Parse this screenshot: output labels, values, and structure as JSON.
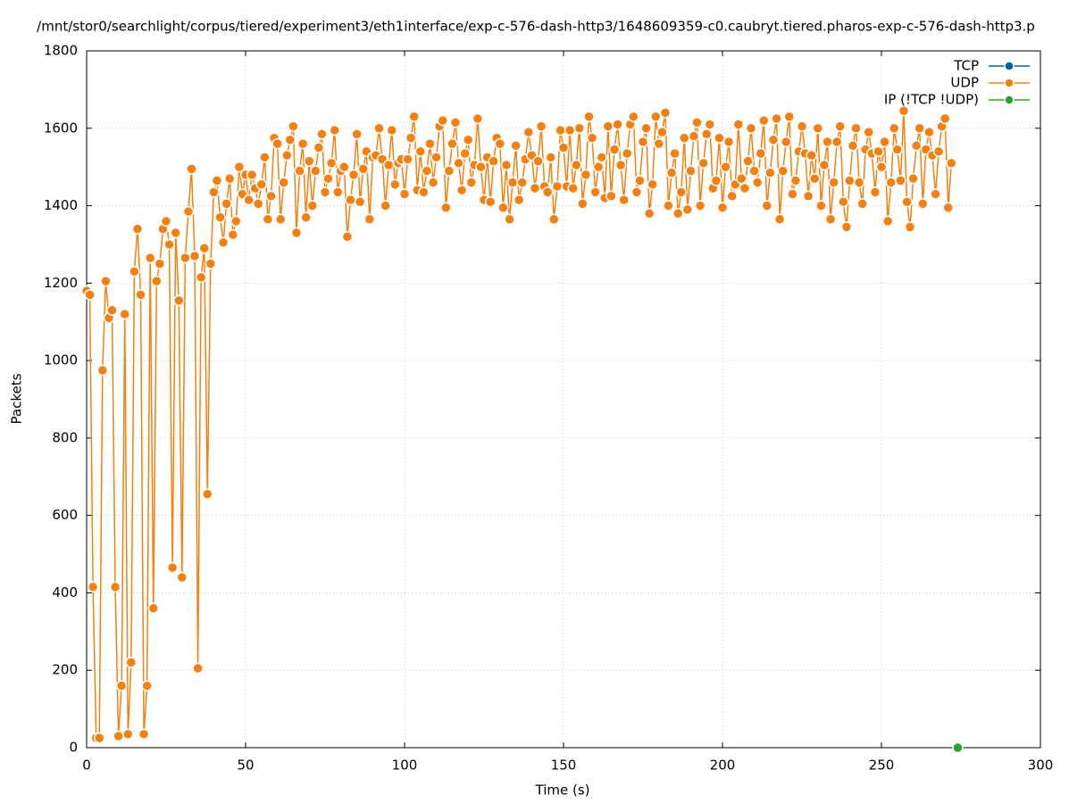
{
  "chart_data": {
    "type": "line",
    "title": "/mnt/stor0/searchlight/corpus/tiered/experiment3/eth1interface/exp-c-576-dash-http3/1648609359-c0.caubryt.tiered.pharos-exp-c-576-dash-http3.p",
    "x_label": "Time (s)",
    "y_label": "Packets",
    "xlim": [
      0,
      300
    ],
    "xticks": [
      0,
      50,
      100,
      150,
      200,
      250,
      300
    ],
    "ylim": [
      0,
      1800
    ],
    "yticks": [
      0,
      200,
      400,
      600,
      800,
      1000,
      1200,
      1400,
      1600,
      1800
    ],
    "grid": true,
    "legend": "top-right",
    "series": [
      {
        "name": "TCP",
        "color": "#0060ad",
        "x": [],
        "values": []
      },
      {
        "name": "UDP",
        "color": "#f5800f",
        "x": [
          0,
          1,
          2,
          3,
          4,
          5,
          6,
          7,
          8,
          9,
          10,
          11,
          12,
          13,
          14,
          15,
          16,
          17,
          18,
          19,
          20,
          21,
          22,
          23,
          24,
          25,
          26,
          27,
          28,
          29,
          30,
          31,
          32,
          33,
          34,
          35,
          36,
          37,
          38,
          39,
          40,
          41,
          42,
          43,
          44,
          45,
          46,
          47,
          48,
          49,
          50,
          51,
          52,
          53,
          54,
          55,
          56,
          57,
          58,
          59,
          60,
          61,
          62,
          63,
          64,
          65,
          66,
          67,
          68,
          69,
          70,
          71,
          72,
          73,
          74,
          75,
          76,
          77,
          78,
          79,
          80,
          81,
          82,
          83,
          84,
          85,
          86,
          87,
          88,
          89,
          90,
          91,
          92,
          93,
          94,
          95,
          96,
          97,
          98,
          99,
          100,
          101,
          102,
          103,
          104,
          105,
          106,
          107,
          108,
          109,
          110,
          111,
          112,
          113,
          114,
          115,
          116,
          117,
          118,
          119,
          120,
          121,
          122,
          123,
          124,
          125,
          126,
          127,
          128,
          129,
          130,
          131,
          132,
          133,
          134,
          135,
          136,
          137,
          138,
          139,
          140,
          141,
          142,
          143,
          144,
          145,
          146,
          147,
          148,
          149,
          150,
          151,
          152,
          153,
          154,
          155,
          156,
          157,
          158,
          159,
          160,
          161,
          162,
          163,
          164,
          165,
          166,
          167,
          168,
          169,
          170,
          171,
          172,
          173,
          174,
          175,
          176,
          177,
          178,
          179,
          180,
          181,
          182,
          183,
          184,
          185,
          186,
          187,
          188,
          189,
          190,
          191,
          192,
          193,
          194,
          195,
          196,
          197,
          198,
          199,
          200,
          201,
          202,
          203,
          204,
          205,
          206,
          207,
          208,
          209,
          210,
          211,
          212,
          213,
          214,
          215,
          216,
          217,
          218,
          219,
          220,
          221,
          222,
          223,
          224,
          225,
          226,
          227,
          228,
          229,
          230,
          231,
          232,
          233,
          234,
          235,
          236,
          237,
          238,
          239,
          240,
          241,
          242,
          243,
          244,
          245,
          246,
          247,
          248,
          249,
          250,
          251,
          252,
          253,
          254,
          255,
          256,
          257,
          258,
          259,
          260,
          261,
          262,
          263,
          264,
          265,
          266,
          267,
          268,
          269,
          270,
          271,
          272
        ],
        "values": [
          1180,
          1170,
          415,
          25,
          25,
          975,
          1205,
          1110,
          1130,
          415,
          30,
          160,
          1120,
          35,
          220,
          1230,
          1340,
          1170,
          35,
          160,
          1265,
          360,
          1205,
          1250,
          1340,
          1360,
          1300,
          465,
          1330,
          1155,
          440,
          1265,
          1385,
          1495,
          1270,
          205,
          1215,
          1290,
          655,
          1250,
          1435,
          1465,
          1370,
          1305,
          1405,
          1470,
          1325,
          1360,
          1500,
          1430,
          1480,
          1415,
          1480,
          1445,
          1405,
          1455,
          1525,
          1365,
          1425,
          1575,
          1560,
          1365,
          1460,
          1530,
          1570,
          1605,
          1330,
          1490,
          1560,
          1370,
          1515,
          1400,
          1490,
          1550,
          1585,
          1435,
          1470,
          1510,
          1595,
          1435,
          1490,
          1500,
          1320,
          1415,
          1480,
          1585,
          1410,
          1495,
          1540,
          1365,
          1525,
          1530,
          1600,
          1520,
          1400,
          1505,
          1595,
          1455,
          1510,
          1520,
          1430,
          1520,
          1575,
          1630,
          1440,
          1540,
          1435,
          1490,
          1560,
          1460,
          1525,
          1605,
          1620,
          1395,
          1490,
          1560,
          1615,
          1510,
          1440,
          1535,
          1570,
          1460,
          1505,
          1625,
          1500,
          1415,
          1525,
          1410,
          1515,
          1575,
          1560,
          1395,
          1505,
          1365,
          1460,
          1555,
          1415,
          1460,
          1520,
          1590,
          1530,
          1445,
          1515,
          1605,
          1450,
          1435,
          1525,
          1365,
          1450,
          1595,
          1550,
          1450,
          1595,
          1445,
          1505,
          1600,
          1405,
          1480,
          1630,
          1575,
          1435,
          1500,
          1525,
          1420,
          1605,
          1425,
          1545,
          1610,
          1505,
          1415,
          1535,
          1610,
          1630,
          1435,
          1465,
          1565,
          1600,
          1380,
          1455,
          1630,
          1560,
          1590,
          1640,
          1400,
          1485,
          1535,
          1380,
          1435,
          1575,
          1390,
          1490,
          1580,
          1615,
          1400,
          1510,
          1585,
          1610,
          1445,
          1465,
          1575,
          1395,
          1500,
          1565,
          1425,
          1455,
          1610,
          1470,
          1445,
          1515,
          1600,
          1490,
          1460,
          1535,
          1620,
          1400,
          1485,
          1570,
          1625,
          1365,
          1490,
          1565,
          1630,
          1430,
          1465,
          1540,
          1605,
          1535,
          1425,
          1530,
          1470,
          1600,
          1400,
          1505,
          1565,
          1365,
          1460,
          1565,
          1605,
          1410,
          1345,
          1465,
          1555,
          1600,
          1460,
          1405,
          1545,
          1590,
          1535,
          1435,
          1540,
          1500,
          1565,
          1360,
          1460,
          1600,
          1545,
          1465,
          1645,
          1410,
          1345,
          1470,
          1555,
          1600,
          1405,
          1545,
          1590,
          1530,
          1430,
          1540,
          1605,
          1625,
          1395,
          1510
        ]
      },
      {
        "name": "IP (!TCP  !UDP)",
        "color": "#2ca02c",
        "x": [
          274
        ],
        "values": [
          0
        ]
      }
    ]
  }
}
